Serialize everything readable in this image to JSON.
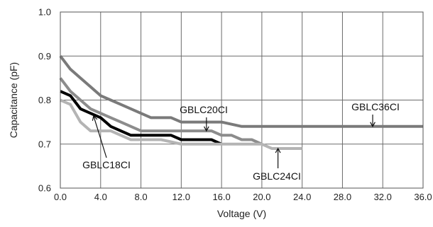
{
  "chart_data": {
    "type": "line",
    "xlabel": "Voltage (V)",
    "ylabel": "Capacitance (pF)",
    "xlim": [
      0,
      36
    ],
    "ylim": [
      0.6,
      1.0
    ],
    "xticks": [
      0,
      4,
      8,
      12,
      16,
      20,
      24,
      28,
      32,
      36
    ],
    "xtick_labels": [
      "0.0",
      "4.0",
      "8.0",
      "12.0",
      "16.0",
      "20.0",
      "24.0",
      "28.0",
      "32.0",
      "36.0"
    ],
    "yticks": [
      0.6,
      0.7,
      0.8,
      0.9,
      1.0
    ],
    "ytick_labels": [
      "0.6",
      "0.7",
      "0.8",
      "0.9",
      "1.0"
    ],
    "grid": true,
    "colors": {
      "GBLC36CI": "#7a7a7a",
      "GBLC20CI": "#8c8c8c",
      "GBLC18CI": "#000000",
      "GBLC24CI": "#b4b4b4"
    },
    "series": [
      {
        "name": "GBLC36CI",
        "x": [
          0,
          1,
          2,
          3,
          4,
          5,
          6,
          7,
          8,
          9,
          10,
          11,
          12,
          14,
          16,
          18,
          20,
          24,
          28,
          32,
          36
        ],
        "y": [
          0.9,
          0.87,
          0.85,
          0.83,
          0.81,
          0.8,
          0.79,
          0.78,
          0.77,
          0.76,
          0.76,
          0.76,
          0.75,
          0.75,
          0.75,
          0.74,
          0.74,
          0.74,
          0.74,
          0.74,
          0.74
        ]
      },
      {
        "name": "GBLC20CI",
        "x": [
          0,
          1,
          2,
          3,
          4,
          5,
          6,
          7,
          8,
          9,
          10,
          12,
          14,
          15,
          16,
          17,
          18,
          19,
          20
        ],
        "y": [
          0.85,
          0.82,
          0.8,
          0.78,
          0.77,
          0.76,
          0.75,
          0.74,
          0.73,
          0.73,
          0.73,
          0.73,
          0.73,
          0.73,
          0.72,
          0.72,
          0.71,
          0.71,
          0.7
        ]
      },
      {
        "name": "GBLC18CI",
        "x": [
          0,
          1,
          2,
          3,
          4,
          5,
          6,
          7,
          8,
          10,
          11,
          12,
          13,
          14,
          15,
          16
        ],
        "y": [
          0.82,
          0.81,
          0.78,
          0.77,
          0.76,
          0.74,
          0.73,
          0.72,
          0.72,
          0.72,
          0.72,
          0.71,
          0.71,
          0.71,
          0.71,
          0.7
        ]
      },
      {
        "name": "GBLC24CI",
        "x": [
          0,
          1,
          2,
          3,
          4,
          5,
          6,
          7,
          8,
          10,
          12,
          14,
          16,
          18,
          20,
          21,
          22,
          24
        ],
        "y": [
          0.8,
          0.79,
          0.75,
          0.73,
          0.73,
          0.73,
          0.72,
          0.71,
          0.71,
          0.71,
          0.7,
          0.7,
          0.7,
          0.7,
          0.7,
          0.69,
          0.69,
          0.69
        ]
      }
    ],
    "annotations": [
      {
        "text": "GBLC36CI",
        "target": [
          31,
          0.74
        ]
      },
      {
        "text": "GBLC20CI",
        "target": [
          14.5,
          0.73
        ]
      },
      {
        "text": "GBLC18CI",
        "target": [
          3.3,
          0.764
        ]
      },
      {
        "text": "GBLC24CI",
        "target": [
          21.6,
          0.69
        ]
      }
    ]
  }
}
